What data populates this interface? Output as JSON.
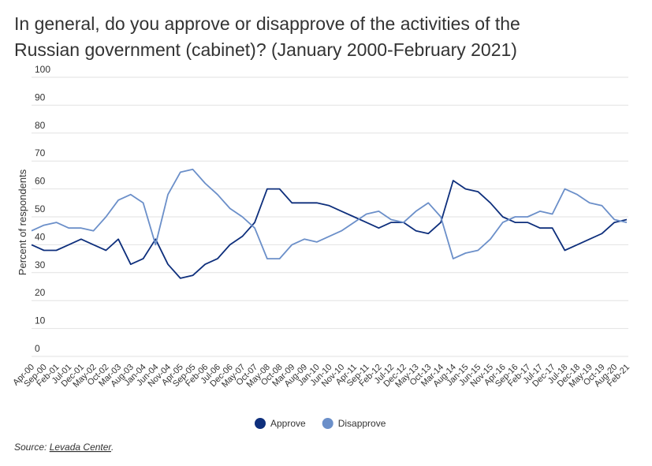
{
  "chart_data": {
    "type": "line",
    "title": "In general, do you approve or disapprove of the activities of the Russian government (cabinet)? (January 2000-February 2021)",
    "y_label": "Percent of respondents",
    "categories": [
      "Apr-00",
      "Sep-00",
      "Feb-01",
      "Jul-01",
      "Dec-01",
      "May-02",
      "Oct-02",
      "Mar-03",
      "Aug-03",
      "Jan-04",
      "Jun-04",
      "Nov-04",
      "Apr-05",
      "Sep-05",
      "Feb-06",
      "Jul-06",
      "Dec-06",
      "May-07",
      "Oct-07",
      "May-08",
      "Oct-08",
      "Mar-09",
      "Aug-09",
      "Jan-10",
      "Jun-10",
      "Nov-10",
      "Apr-11",
      "Sep-11",
      "Feb-12",
      "Jul-12",
      "Dec-12",
      "May-13",
      "Oct-13",
      "Mar-14",
      "Aug-14",
      "Jan-15",
      "Jun-15",
      "Nov-15",
      "Apr-16",
      "Sep-16",
      "Feb-17",
      "Jul-17",
      "Dec-17",
      "Jul-18",
      "Dec-18",
      "May-19",
      "Oct-19",
      "Aug-20",
      "Feb-21"
    ],
    "series": [
      {
        "name": "Approve",
        "color": "#0e2f7c",
        "values": [
          40,
          38,
          38,
          40,
          42,
          40,
          38,
          42,
          33,
          35,
          42,
          33,
          28,
          29,
          33,
          35,
          40,
          43,
          48,
          60,
          60,
          55,
          55,
          55,
          54,
          52,
          50,
          48,
          46,
          48,
          48,
          45,
          44,
          48,
          63,
          60,
          59,
          55,
          50,
          48,
          48,
          46,
          46,
          38,
          40,
          42,
          44,
          48,
          49
        ]
      },
      {
        "name": "Disapprove",
        "color": "#6b8fc9",
        "values": [
          45,
          47,
          48,
          46,
          46,
          45,
          50,
          56,
          58,
          55,
          40,
          58,
          66,
          67,
          62,
          58,
          53,
          50,
          46,
          35,
          35,
          40,
          42,
          41,
          43,
          45,
          48,
          51,
          52,
          49,
          48,
          52,
          55,
          50,
          35,
          37,
          38,
          42,
          48,
          50,
          50,
          52,
          51,
          60,
          58,
          55,
          54,
          49,
          48
        ]
      }
    ],
    "ylim": [
      0,
      100
    ],
    "yticks": [
      0,
      10,
      20,
      30,
      40,
      50,
      60,
      70,
      80,
      90,
      100
    ],
    "grid": true,
    "legend": "bottom",
    "source_label": "Source:",
    "source_link": "Levada Center",
    "source_end": "."
  }
}
